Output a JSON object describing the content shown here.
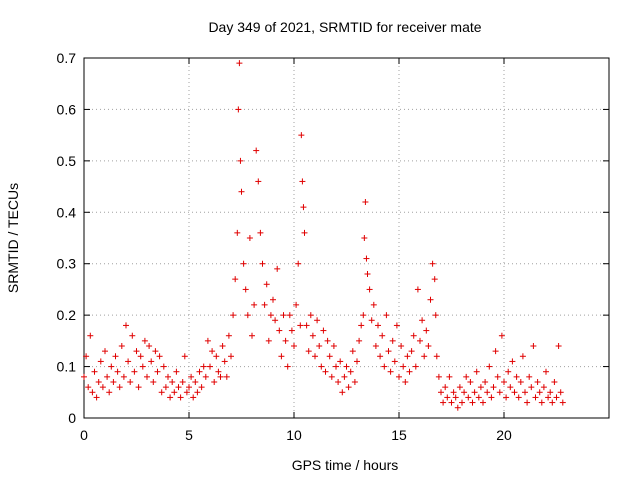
{
  "chart_data": {
    "type": "scatter",
    "title": "Day 349 of 2021, SRMTID for receiver mate",
    "xlabel": "GPS time / hours",
    "ylabel": "SRMTID / TECUs",
    "xlim": [
      0,
      25
    ],
    "ylim": [
      0,
      0.7
    ],
    "xticks": [
      0,
      5,
      10,
      15,
      20
    ],
    "yticks": [
      0,
      0.1,
      0.2,
      0.3,
      0.4,
      0.5,
      0.6,
      0.7
    ],
    "xtick_labels": [
      "0",
      "5",
      "10",
      "15",
      "20"
    ],
    "ytick_labels": [
      "0",
      "0.1",
      "0.2",
      "0.3",
      "0.4",
      "0.5",
      "0.6",
      "0.7"
    ],
    "grid": true,
    "marker": "+",
    "color": "#e00000",
    "series": [
      {
        "name": "SRMTID",
        "x": [
          0.0,
          0.1,
          0.2,
          0.3,
          0.4,
          0.5,
          0.6,
          0.7,
          0.8,
          0.9,
          1.0,
          1.1,
          1.2,
          1.3,
          1.4,
          1.5,
          1.6,
          1.7,
          1.8,
          1.9,
          2.0,
          2.1,
          2.2,
          2.3,
          2.4,
          2.5,
          2.6,
          2.7,
          2.8,
          2.9,
          3.0,
          3.1,
          3.2,
          3.3,
          3.4,
          3.5,
          3.6,
          3.7,
          3.8,
          3.9,
          4.0,
          4.1,
          4.2,
          4.3,
          4.4,
          4.5,
          4.6,
          4.7,
          4.8,
          4.9,
          5.0,
          5.1,
          5.2,
          5.3,
          5.4,
          5.5,
          5.6,
          5.7,
          5.8,
          5.9,
          6.0,
          6.1,
          6.2,
          6.3,
          6.4,
          6.5,
          6.6,
          6.7,
          6.8,
          6.9,
          7.0,
          7.1,
          7.2,
          7.3,
          7.35,
          7.4,
          7.45,
          7.5,
          7.6,
          7.7,
          7.8,
          7.9,
          8.0,
          8.1,
          8.2,
          8.3,
          8.4,
          8.5,
          8.6,
          8.7,
          8.8,
          8.9,
          9.0,
          9.1,
          9.2,
          9.3,
          9.4,
          9.5,
          9.6,
          9.7,
          9.8,
          9.9,
          10.0,
          10.1,
          10.2,
          10.3,
          10.35,
          10.4,
          10.45,
          10.5,
          10.6,
          10.7,
          10.8,
          10.9,
          11.0,
          11.1,
          11.2,
          11.3,
          11.4,
          11.5,
          11.6,
          11.7,
          11.8,
          11.9,
          12.0,
          12.1,
          12.2,
          12.3,
          12.4,
          12.5,
          12.6,
          12.7,
          12.8,
          12.9,
          13.0,
          13.1,
          13.2,
          13.3,
          13.35,
          13.4,
          13.45,
          13.5,
          13.6,
          13.7,
          13.8,
          13.9,
          14.0,
          14.1,
          14.2,
          14.3,
          14.4,
          14.5,
          14.6,
          14.7,
          14.8,
          14.9,
          15.0,
          15.1,
          15.2,
          15.3,
          15.4,
          15.5,
          15.6,
          15.7,
          15.8,
          15.9,
          16.0,
          16.1,
          16.2,
          16.3,
          16.4,
          16.5,
          16.6,
          16.7,
          16.75,
          16.8,
          16.9,
          17.0,
          17.1,
          17.2,
          17.3,
          17.4,
          17.5,
          17.6,
          17.7,
          17.8,
          17.9,
          18.0,
          18.1,
          18.2,
          18.3,
          18.4,
          18.5,
          18.6,
          18.7,
          18.8,
          18.9,
          19.0,
          19.1,
          19.2,
          19.3,
          19.4,
          19.5,
          19.6,
          19.7,
          19.8,
          19.9,
          20.0,
          20.1,
          20.2,
          20.3,
          20.4,
          20.5,
          20.6,
          20.7,
          20.8,
          20.9,
          21.0,
          21.1,
          21.2,
          21.3,
          21.4,
          21.5,
          21.6,
          21.7,
          21.8,
          21.9,
          22.0,
          22.1,
          22.2,
          22.3,
          22.4,
          22.5,
          22.6,
          22.7,
          22.8
        ],
        "y": [
          0.08,
          0.12,
          0.06,
          0.16,
          0.05,
          0.09,
          0.04,
          0.07,
          0.11,
          0.06,
          0.13,
          0.08,
          0.05,
          0.1,
          0.07,
          0.12,
          0.09,
          0.06,
          0.14,
          0.08,
          0.18,
          0.11,
          0.07,
          0.16,
          0.09,
          0.13,
          0.06,
          0.12,
          0.1,
          0.15,
          0.08,
          0.14,
          0.11,
          0.07,
          0.13,
          0.09,
          0.12,
          0.05,
          0.1,
          0.06,
          0.08,
          0.04,
          0.07,
          0.05,
          0.09,
          0.06,
          0.04,
          0.07,
          0.12,
          0.05,
          0.06,
          0.08,
          0.04,
          0.07,
          0.05,
          0.09,
          0.06,
          0.1,
          0.08,
          0.15,
          0.1,
          0.13,
          0.07,
          0.12,
          0.09,
          0.08,
          0.14,
          0.11,
          0.08,
          0.16,
          0.12,
          0.2,
          0.27,
          0.36,
          0.6,
          0.69,
          0.5,
          0.44,
          0.3,
          0.25,
          0.2,
          0.35,
          0.16,
          0.22,
          0.52,
          0.46,
          0.36,
          0.3,
          0.22,
          0.26,
          0.15,
          0.2,
          0.23,
          0.19,
          0.29,
          0.17,
          0.12,
          0.2,
          0.15,
          0.1,
          0.2,
          0.17,
          0.14,
          0.22,
          0.3,
          0.18,
          0.55,
          0.46,
          0.41,
          0.36,
          0.18,
          0.13,
          0.2,
          0.16,
          0.12,
          0.19,
          0.14,
          0.1,
          0.17,
          0.09,
          0.15,
          0.12,
          0.08,
          0.14,
          0.1,
          0.07,
          0.11,
          0.05,
          0.08,
          0.1,
          0.06,
          0.09,
          0.13,
          0.07,
          0.11,
          0.15,
          0.18,
          0.2,
          0.35,
          0.42,
          0.31,
          0.28,
          0.25,
          0.19,
          0.22,
          0.14,
          0.18,
          0.12,
          0.16,
          0.1,
          0.2,
          0.13,
          0.09,
          0.15,
          0.11,
          0.18,
          0.08,
          0.14,
          0.1,
          0.07,
          0.12,
          0.09,
          0.13,
          0.16,
          0.1,
          0.25,
          0.15,
          0.19,
          0.12,
          0.17,
          0.14,
          0.23,
          0.3,
          0.27,
          0.2,
          0.12,
          0.08,
          0.05,
          0.03,
          0.06,
          0.04,
          0.08,
          0.03,
          0.05,
          0.04,
          0.02,
          0.06,
          0.03,
          0.05,
          0.08,
          0.04,
          0.07,
          0.03,
          0.05,
          0.09,
          0.04,
          0.06,
          0.03,
          0.07,
          0.05,
          0.1,
          0.04,
          0.06,
          0.13,
          0.08,
          0.05,
          0.16,
          0.07,
          0.04,
          0.09,
          0.06,
          0.11,
          0.05,
          0.08,
          0.04,
          0.07,
          0.12,
          0.05,
          0.03,
          0.08,
          0.06,
          0.14,
          0.04,
          0.07,
          0.05,
          0.03,
          0.06,
          0.09,
          0.04,
          0.05,
          0.03,
          0.07,
          0.04,
          0.14,
          0.05,
          0.03
        ]
      }
    ]
  }
}
